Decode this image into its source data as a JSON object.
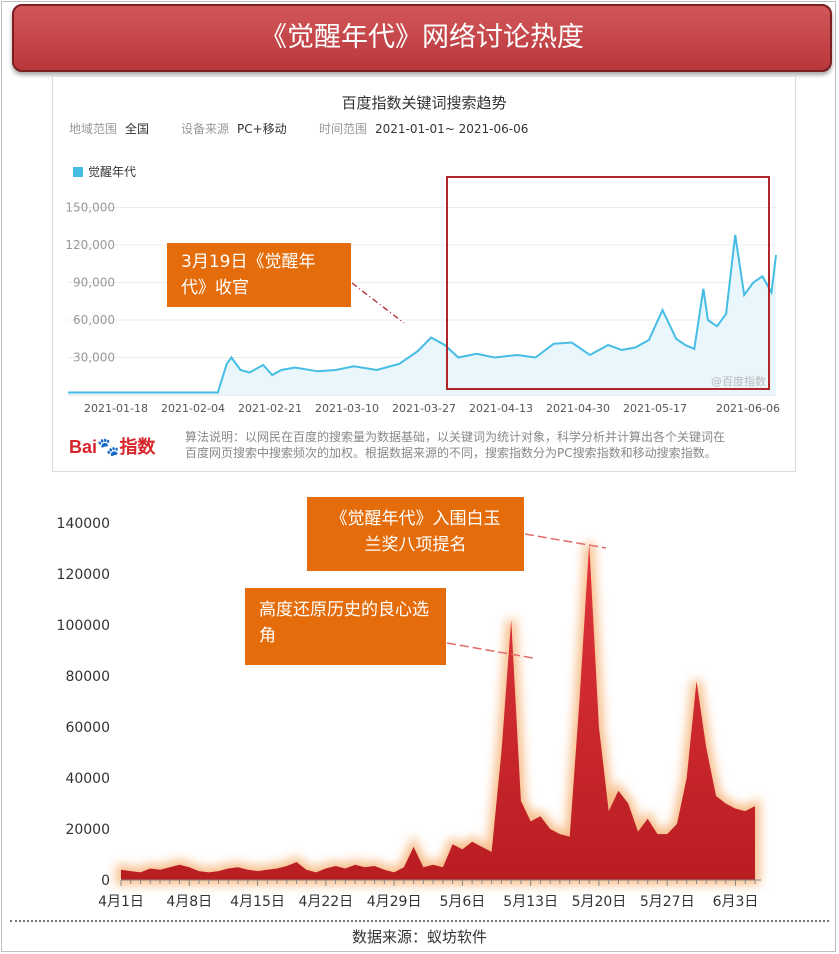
{
  "title": "《觉醒年代》网络讨论热度",
  "baidu_panel": {
    "title": "百度指数关键词搜索趋势",
    "region_label": "地域范围",
    "region_value": "全国",
    "device_label": "设备来源",
    "device_value": "PC+移动",
    "time_label": "时间范围",
    "time_value": "2021-01-01~ 2021-06-06",
    "legend": "觉醒年代",
    "watermark": "@百度指数",
    "logo_text": "Bai指数",
    "note_line1": "算法说明：以网民在百度的搜索量为数据基础，以关键词为统计对象，科学分析并计算出各个关键词在",
    "note_line2": "百度网页搜索中搜索频次的加权。根据数据来源的不同，搜索指数分为PC搜索指数和移动搜索指数。",
    "callout": "3月19日《觉醒年代》收官",
    "colors": {
      "line": "#45bde4",
      "fill": "#e9f6fc",
      "highlight_box": "#b0252a"
    }
  },
  "callout_award": "《觉醒年代》入围白玉兰奖八项提名",
  "callout_history": "高度还原历史的良心选角",
  "source": "数据来源：蚁坊软件",
  "colors": {
    "callout": "#e46c0a",
    "area": "#d7262b",
    "glow": "#f7b77e"
  },
  "chart_data": [
    {
      "type": "line",
      "title": "百度指数关键词搜索趋势",
      "series": [
        {
          "name": "觉醒年代",
          "x": [
            "2021-01-01",
            "2021-01-10",
            "2021-01-20",
            "2021-01-30",
            "2021-02-03",
            "2021-02-05",
            "2021-02-06",
            "2021-02-08",
            "2021-02-10",
            "2021-02-13",
            "2021-02-15",
            "2021-02-17",
            "2021-02-20",
            "2021-02-25",
            "2021-03-01",
            "2021-03-05",
            "2021-03-10",
            "2021-03-15",
            "2021-03-19",
            "2021-03-22",
            "2021-03-25",
            "2021-03-28",
            "2021-04-01",
            "2021-04-05",
            "2021-04-10",
            "2021-04-14",
            "2021-04-18",
            "2021-04-22",
            "2021-04-26",
            "2021-04-30",
            "2021-05-03",
            "2021-05-06",
            "2021-05-09",
            "2021-05-12",
            "2021-05-15",
            "2021-05-17",
            "2021-05-19",
            "2021-05-21",
            "2021-05-22",
            "2021-05-24",
            "2021-05-26",
            "2021-05-28",
            "2021-05-30",
            "2021-06-01",
            "2021-06-03",
            "2021-06-05",
            "2021-06-06"
          ],
          "values": [
            2000,
            2000,
            2000,
            2000,
            2000,
            25000,
            30000,
            20000,
            18000,
            24000,
            16000,
            20000,
            22000,
            19000,
            20000,
            23000,
            20000,
            25000,
            35000,
            46000,
            40000,
            30000,
            33000,
            30000,
            32000,
            30000,
            41000,
            42000,
            32000,
            40000,
            36000,
            38000,
            44000,
            68000,
            45000,
            40000,
            37000,
            85000,
            60000,
            55000,
            65000,
            128000,
            80000,
            90000,
            95000,
            82000,
            112000
          ]
        }
      ],
      "x_ticks": [
        "2021-01-18",
        "2021-02-04",
        "2021-02-21",
        "2021-03-10",
        "2021-03-27",
        "2021-04-13",
        "2021-04-30",
        "2021-05-17",
        "2021-06-06"
      ],
      "y_ticks": [
        "30,000",
        "60,000",
        "90,000",
        "120,000",
        "150,000"
      ],
      "ylim": [
        0,
        170000
      ]
    },
    {
      "type": "area",
      "categories": [
        "4月1日",
        "4月8日",
        "4月15日",
        "4月22日",
        "4月29日",
        "5月6日",
        "5月13日",
        "5月20日",
        "5月27日",
        "6月3日"
      ],
      "x": [
        1,
        2,
        3,
        4,
        5,
        6,
        7,
        8,
        9,
        10,
        11,
        12,
        13,
        14,
        15,
        16,
        17,
        18,
        19,
        20,
        21,
        22,
        23,
        24,
        25,
        26,
        27,
        28,
        29,
        30,
        31,
        32,
        33,
        34,
        35,
        36,
        37,
        38,
        39,
        40,
        41,
        42,
        43,
        44,
        45,
        46,
        47,
        48,
        49,
        50,
        51,
        52,
        53,
        54,
        55,
        56,
        57,
        58,
        59,
        60,
        61,
        62,
        63,
        64,
        65,
        66
      ],
      "values": [
        4000,
        3500,
        3000,
        4500,
        4000,
        5000,
        6000,
        5000,
        3500,
        3000,
        3500,
        4500,
        5000,
        4000,
        3500,
        4000,
        4500,
        5500,
        7000,
        4000,
        3000,
        4500,
        5500,
        4500,
        6000,
        5000,
        5500,
        4000,
        3000,
        5000,
        13000,
        5000,
        6000,
        5000,
        14000,
        12000,
        15000,
        13000,
        11000,
        50000,
        102000,
        31000,
        23000,
        25000,
        20000,
        18000,
        17000,
        70000,
        132000,
        60000,
        27000,
        35000,
        30000,
        19000,
        24000,
        18000,
        18000,
        22000,
        40000,
        78000,
        52000,
        33000,
        30000,
        28000,
        27000,
        29000
      ],
      "y_ticks": [
        "0",
        "20000",
        "40000",
        "60000",
        "80000",
        "100000",
        "120000",
        "140000"
      ],
      "ylim": [
        0,
        140000
      ]
    }
  ]
}
